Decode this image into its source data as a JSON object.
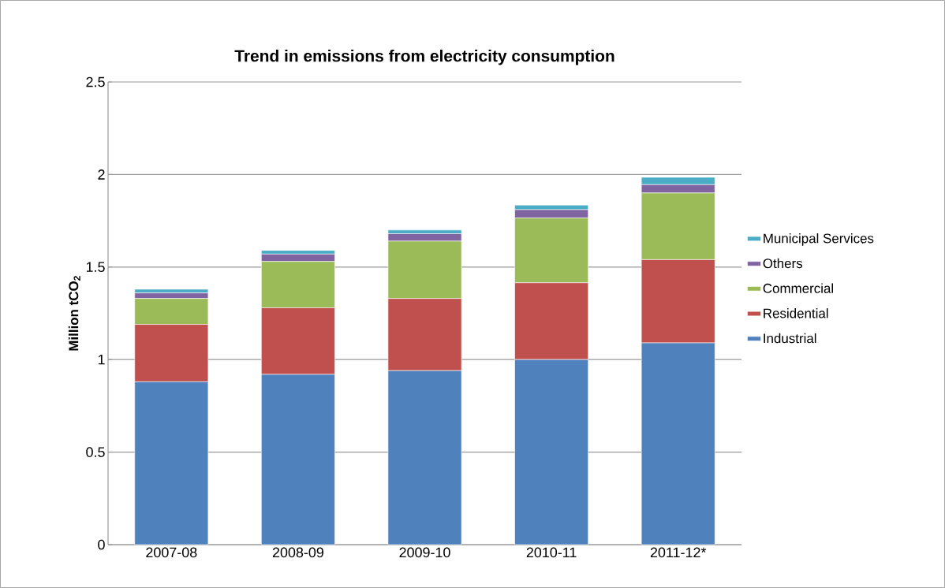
{
  "chart_data": {
    "type": "bar",
    "stacked": true,
    "title": "Trend in emissions from electricity consumption",
    "ylabel": "Million tCO$_{2}$",
    "categories": [
      "2007-08",
      "2008-09",
      "2009-10",
      "2010-11",
      "2011-12*"
    ],
    "series": [
      {
        "name": "Industrial",
        "color": "#4f81bd",
        "values": [
          0.88,
          0.92,
          0.94,
          1.0,
          1.09
        ]
      },
      {
        "name": "Residential",
        "color": "#c0504d",
        "values": [
          0.31,
          0.36,
          0.39,
          0.415,
          0.45
        ]
      },
      {
        "name": "Commercial",
        "color": "#9bbb59",
        "values": [
          0.14,
          0.25,
          0.31,
          0.35,
          0.36
        ]
      },
      {
        "name": "Others",
        "color": "#8064a2",
        "values": [
          0.03,
          0.04,
          0.04,
          0.045,
          0.045
        ]
      },
      {
        "name": "Municipal Services",
        "color": "#4bacc6",
        "values": [
          0.02,
          0.02,
          0.02,
          0.025,
          0.04
        ]
      }
    ],
    "ylim": [
      0,
      2.5
    ],
    "yticks": [
      0,
      0.5,
      1,
      1.5,
      2,
      2.5
    ],
    "grid": "y",
    "legend": "right"
  }
}
